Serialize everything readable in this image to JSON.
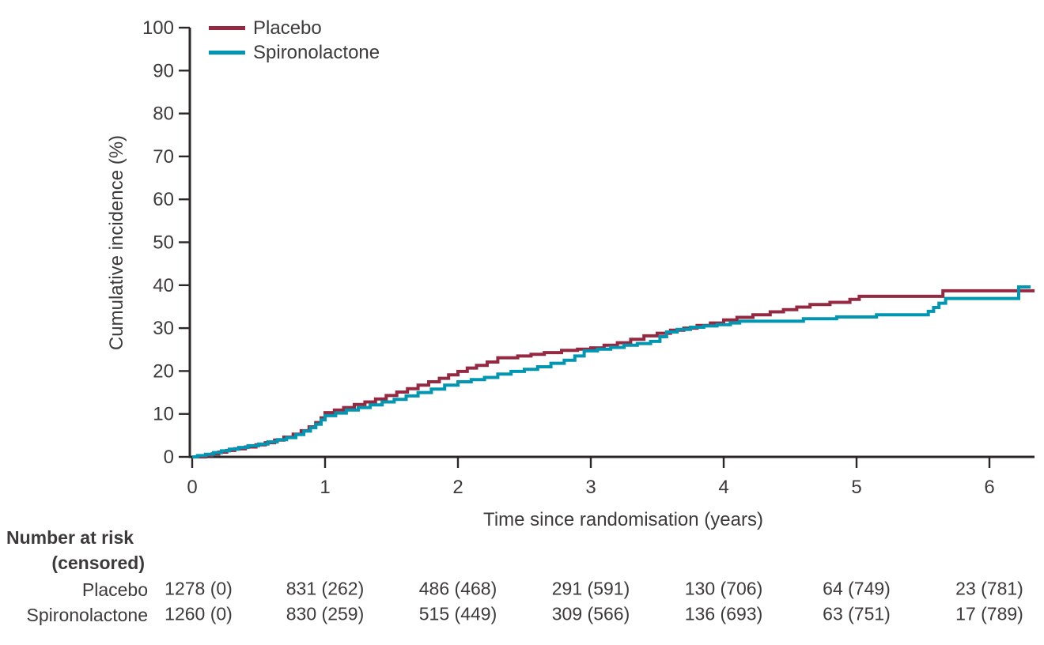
{
  "figure": {
    "background": "#ffffff",
    "text_color": "#3c3a3a",
    "axis_color": "#2b2728"
  },
  "chart_data": {
    "type": "line",
    "subtype": "kaplan-meier-cumulative-incidence-step",
    "title": "",
    "xlabel": "Time since randomisation (years)",
    "ylabel": "Cumulative incidence (%)",
    "xlim": [
      0,
      6.35
    ],
    "ylim": [
      0,
      100
    ],
    "x_tick_values": [
      0,
      1,
      2,
      3,
      4,
      5,
      6
    ],
    "y_tick_values": [
      0,
      10,
      20,
      30,
      40,
      50,
      60,
      70,
      80,
      90,
      100
    ],
    "grid": false,
    "legend_position": "top-left-inside",
    "series": [
      {
        "name": "Placebo",
        "color": "#942a42",
        "points": [
          [
            0,
            0
          ],
          [
            0.07,
            0
          ],
          [
            0.1,
            0.3
          ],
          [
            0.15,
            0.7
          ],
          [
            0.2,
            1.1
          ],
          [
            0.26,
            1.5
          ],
          [
            0.32,
            1.9
          ],
          [
            0.4,
            2.3
          ],
          [
            0.48,
            2.8
          ],
          [
            0.55,
            3.3
          ],
          [
            0.62,
            3.9
          ],
          [
            0.69,
            4.6
          ],
          [
            0.76,
            5.3
          ],
          [
            0.82,
            6.1
          ],
          [
            0.88,
            7.0
          ],
          [
            0.93,
            8.0
          ],
          [
            0.97,
            9.1
          ],
          [
            1.0,
            10.3
          ],
          [
            1.07,
            10.9
          ],
          [
            1.14,
            11.5
          ],
          [
            1.22,
            12.2
          ],
          [
            1.3,
            12.8
          ],
          [
            1.38,
            13.5
          ],
          [
            1.46,
            14.3
          ],
          [
            1.54,
            15.1
          ],
          [
            1.62,
            15.9
          ],
          [
            1.7,
            16.7
          ],
          [
            1.78,
            17.5
          ],
          [
            1.86,
            18.3
          ],
          [
            1.93,
            19.1
          ],
          [
            2.0,
            19.9
          ],
          [
            2.07,
            20.7
          ],
          [
            2.14,
            21.3
          ],
          [
            2.22,
            22.1
          ],
          [
            2.3,
            23.1
          ],
          [
            2.45,
            23.5
          ],
          [
            2.55,
            23.9
          ],
          [
            2.65,
            24.3
          ],
          [
            2.78,
            24.8
          ],
          [
            2.9,
            25.1
          ],
          [
            3.0,
            25.4
          ],
          [
            3.1,
            26.0
          ],
          [
            3.2,
            26.6
          ],
          [
            3.3,
            27.4
          ],
          [
            3.4,
            28.2
          ],
          [
            3.5,
            28.8
          ],
          [
            3.6,
            29.5
          ],
          [
            3.7,
            30.0
          ],
          [
            3.8,
            30.6
          ],
          [
            3.9,
            31.2
          ],
          [
            4.0,
            31.9
          ],
          [
            4.1,
            32.5
          ],
          [
            4.22,
            33.1
          ],
          [
            4.35,
            33.8
          ],
          [
            4.45,
            34.3
          ],
          [
            4.55,
            34.9
          ],
          [
            4.65,
            35.5
          ],
          [
            4.8,
            36.0
          ],
          [
            4.95,
            36.7
          ],
          [
            5.02,
            37.4
          ],
          [
            5.65,
            38.7
          ],
          [
            6.34,
            38.7
          ]
        ]
      },
      {
        "name": "Spironolactone",
        "color": "#0096b2",
        "points": [
          [
            0,
            0
          ],
          [
            0.04,
            0.3
          ],
          [
            0.1,
            0.6
          ],
          [
            0.16,
            1.0
          ],
          [
            0.22,
            1.4
          ],
          [
            0.28,
            1.8
          ],
          [
            0.35,
            2.2
          ],
          [
            0.42,
            2.6
          ],
          [
            0.5,
            3.0
          ],
          [
            0.57,
            3.5
          ],
          [
            0.64,
            4.0
          ],
          [
            0.71,
            4.5
          ],
          [
            0.78,
            5.2
          ],
          [
            0.84,
            6.0
          ],
          [
            0.89,
            6.8
          ],
          [
            0.93,
            7.6
          ],
          [
            0.97,
            8.6
          ],
          [
            1.0,
            9.6
          ],
          [
            1.08,
            10.2
          ],
          [
            1.16,
            10.9
          ],
          [
            1.25,
            11.5
          ],
          [
            1.34,
            12.1
          ],
          [
            1.43,
            12.8
          ],
          [
            1.52,
            13.4
          ],
          [
            1.61,
            14.2
          ],
          [
            1.7,
            15.0
          ],
          [
            1.8,
            15.8
          ],
          [
            1.9,
            16.7
          ],
          [
            2.0,
            17.5
          ],
          [
            2.1,
            18.0
          ],
          [
            2.2,
            18.5
          ],
          [
            2.3,
            19.3
          ],
          [
            2.4,
            19.9
          ],
          [
            2.5,
            20.4
          ],
          [
            2.6,
            21.0
          ],
          [
            2.7,
            21.8
          ],
          [
            2.8,
            22.5
          ],
          [
            2.88,
            23.5
          ],
          [
            2.95,
            24.7
          ],
          [
            3.05,
            25.1
          ],
          [
            3.15,
            25.5
          ],
          [
            3.25,
            26.0
          ],
          [
            3.35,
            26.4
          ],
          [
            3.45,
            26.9
          ],
          [
            3.52,
            28.0
          ],
          [
            3.57,
            29.1
          ],
          [
            3.65,
            29.7
          ],
          [
            3.75,
            30.2
          ],
          [
            3.85,
            30.5
          ],
          [
            3.95,
            30.8
          ],
          [
            4.05,
            31.2
          ],
          [
            4.12,
            31.6
          ],
          [
            4.6,
            32.2
          ],
          [
            4.85,
            32.6
          ],
          [
            5.15,
            33.1
          ],
          [
            5.54,
            33.9
          ],
          [
            5.58,
            34.8
          ],
          [
            5.62,
            35.8
          ],
          [
            5.67,
            36.9
          ],
          [
            6.22,
            39.6
          ],
          [
            6.31,
            39.6
          ]
        ]
      }
    ],
    "at_risk_table": {
      "title": "Number at risk",
      "subtitle": "(censored)",
      "time_points": [
        0,
        1,
        2,
        3,
        4,
        5,
        6
      ],
      "rows": [
        {
          "label": "Placebo",
          "values": [
            "1278 (0)",
            "831 (262)",
            "486 (468)",
            "291 (591)",
            "130 (706)",
            "64 (749)",
            "23 (781)"
          ]
        },
        {
          "label": "Spironolactone",
          "values": [
            "1260 (0)",
            "830 (259)",
            "515 (449)",
            "309 (566)",
            "136 (693)",
            "63 (751)",
            "17 (789)"
          ]
        }
      ]
    }
  }
}
